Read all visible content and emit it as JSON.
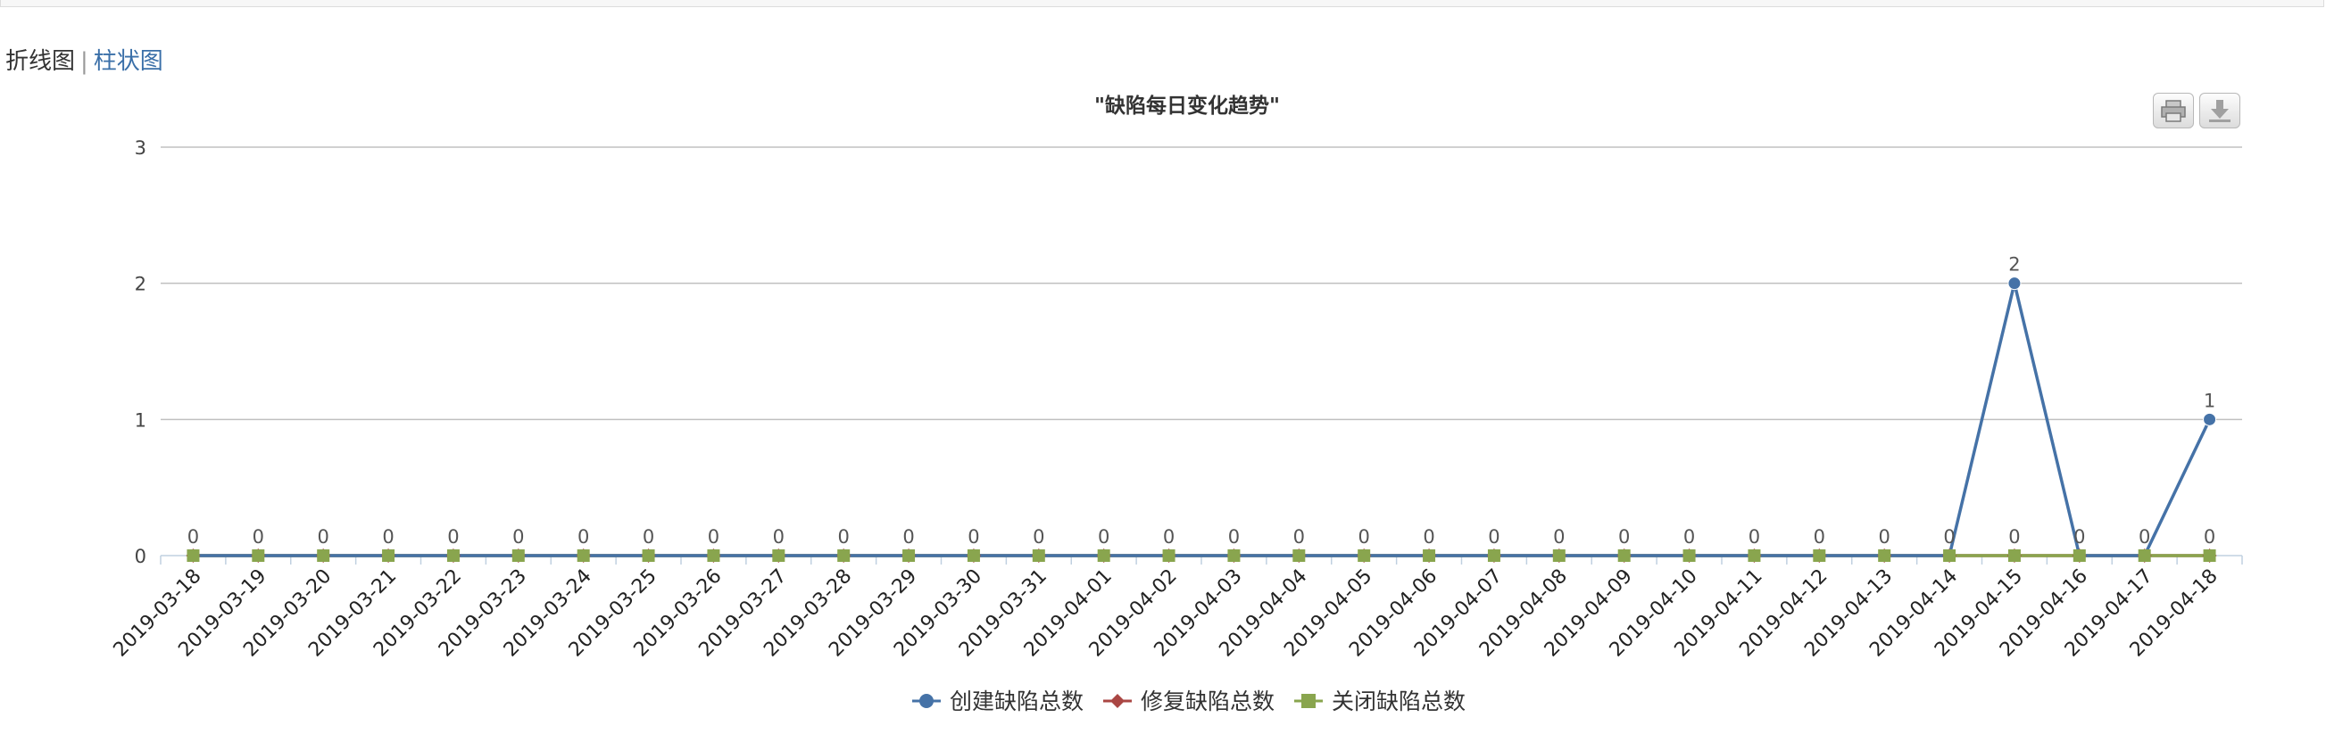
{
  "view_switch": {
    "active": "折线图",
    "separator": "|",
    "other": "柱状图"
  },
  "toolbar": {
    "print_icon": "print-icon",
    "export_icon": "download-icon"
  },
  "chart_data": {
    "type": "line",
    "title": "\"缺陷每日变化趋势\"",
    "xlabel": "",
    "ylabel": "",
    "ylim": [
      0,
      3
    ],
    "yticks": [
      "0",
      "1",
      "2",
      "3"
    ],
    "grid": true,
    "legend_position": "bottom",
    "categories": [
      "2019-03-18",
      "2019-03-19",
      "2019-03-20",
      "2019-03-21",
      "2019-03-22",
      "2019-03-23",
      "2019-03-24",
      "2019-03-25",
      "2019-03-26",
      "2019-03-27",
      "2019-03-28",
      "2019-03-29",
      "2019-03-30",
      "2019-03-31",
      "2019-04-01",
      "2019-04-02",
      "2019-04-03",
      "2019-04-04",
      "2019-04-05",
      "2019-04-06",
      "2019-04-07",
      "2019-04-08",
      "2019-04-09",
      "2019-04-10",
      "2019-04-11",
      "2019-04-12",
      "2019-04-13",
      "2019-04-14",
      "2019-04-15",
      "2019-04-16",
      "2019-04-17",
      "2019-04-18"
    ],
    "series": [
      {
        "name": "创建缺陷总数",
        "color": "#4572a7",
        "marker": "circle",
        "values": [
          0,
          0,
          0,
          0,
          0,
          0,
          0,
          0,
          0,
          0,
          0,
          0,
          0,
          0,
          0,
          0,
          0,
          0,
          0,
          0,
          0,
          0,
          0,
          0,
          0,
          0,
          0,
          0,
          2,
          0,
          0,
          1
        ],
        "data_labels": [
          null,
          null,
          null,
          null,
          null,
          null,
          null,
          null,
          null,
          null,
          null,
          null,
          null,
          null,
          null,
          null,
          null,
          null,
          null,
          null,
          null,
          null,
          null,
          null,
          null,
          null,
          null,
          null,
          "2",
          null,
          null,
          "1"
        ]
      },
      {
        "name": "修复缺陷总数",
        "color": "#aa4643",
        "marker": "diamond",
        "values": [
          0,
          0,
          0,
          0,
          0,
          0,
          0,
          0,
          0,
          0,
          0,
          0,
          0,
          0,
          0,
          0,
          0,
          0,
          0,
          0,
          0,
          0,
          0,
          0,
          0,
          0,
          0,
          0,
          0,
          0,
          0,
          0
        ],
        "data_labels": []
      },
      {
        "name": "关闭缺陷总数",
        "color": "#89a54e",
        "marker": "square",
        "values": [
          0,
          0,
          0,
          0,
          0,
          0,
          0,
          0,
          0,
          0,
          0,
          0,
          0,
          0,
          0,
          0,
          0,
          0,
          0,
          0,
          0,
          0,
          0,
          0,
          0,
          0,
          0,
          0,
          0,
          0,
          0,
          0
        ],
        "data_labels": [
          "0",
          "0",
          "0",
          "0",
          "0",
          "0",
          "0",
          "0",
          "0",
          "0",
          "0",
          "0",
          "0",
          "0",
          "0",
          "0",
          "0",
          "0",
          "0",
          "0",
          "0",
          "0",
          "0",
          "0",
          "0",
          "0",
          "0",
          "0",
          "0",
          "0",
          "0",
          "0"
        ]
      }
    ]
  }
}
